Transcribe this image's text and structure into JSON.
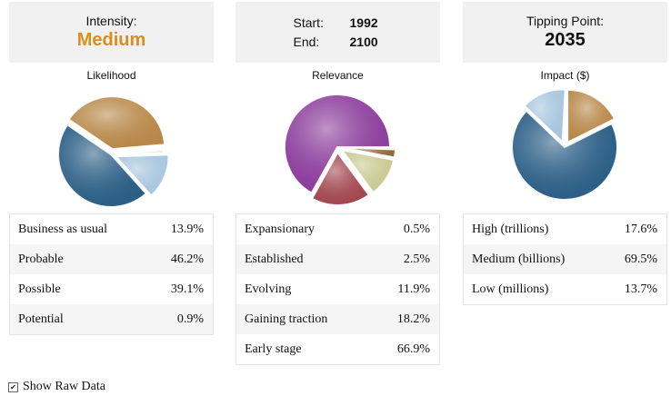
{
  "panels": [
    {
      "header_title": "Intensity:",
      "header_value": "Medium",
      "pie_title": "Likelihood",
      "slices": [
        {
          "label": "Business as usual",
          "value": "13.9%",
          "pct": 13.9,
          "color": "#a8c6df"
        },
        {
          "label": "Probable",
          "value": "46.2%",
          "pct": 46.2,
          "color": "#2c5f86"
        },
        {
          "label": "Possible",
          "value": "39.1%",
          "pct": 39.1,
          "color": "#b8884a"
        },
        {
          "label": "Potential",
          "value": "0.9%",
          "pct": 0.9,
          "color": "#dfe3e7"
        }
      ]
    },
    {
      "start_label": "Start:",
      "start_value": "1992",
      "end_label": "End:",
      "end_value": "2100",
      "pie_title": "Relevance",
      "slices": [
        {
          "label": "Expansionary",
          "value": "0.5%",
          "pct": 0.5,
          "color": "#6e5a2e"
        },
        {
          "label": "Established",
          "value": "2.5%",
          "pct": 2.5,
          "color": "#8a6a38"
        },
        {
          "label": "Evolving",
          "value": "11.9%",
          "pct": 11.9,
          "color": "#c9c992"
        },
        {
          "label": "Gaining traction",
          "value": "18.2%",
          "pct": 18.2,
          "color": "#a34850"
        },
        {
          "label": "Early stage",
          "value": "66.9%",
          "pct": 66.9,
          "color": "#8c3e9c"
        }
      ]
    },
    {
      "header_title": "Tipping Point:",
      "header_value": "2035",
      "pie_title": "Impact ($)",
      "slices": [
        {
          "label": "High (trillions)",
          "value": "17.6%",
          "pct": 17.6,
          "color": "#b8884a"
        },
        {
          "label": "Medium (billions)",
          "value": "69.5%",
          "pct": 69.5,
          "color": "#2c5f86"
        },
        {
          "label": "Low (millions)",
          "value": "13.7%",
          "pct": 13.7,
          "color": "#a8c6df"
        }
      ]
    }
  ],
  "show_raw_data": {
    "label": "Show Raw Data",
    "checked": true
  }
}
